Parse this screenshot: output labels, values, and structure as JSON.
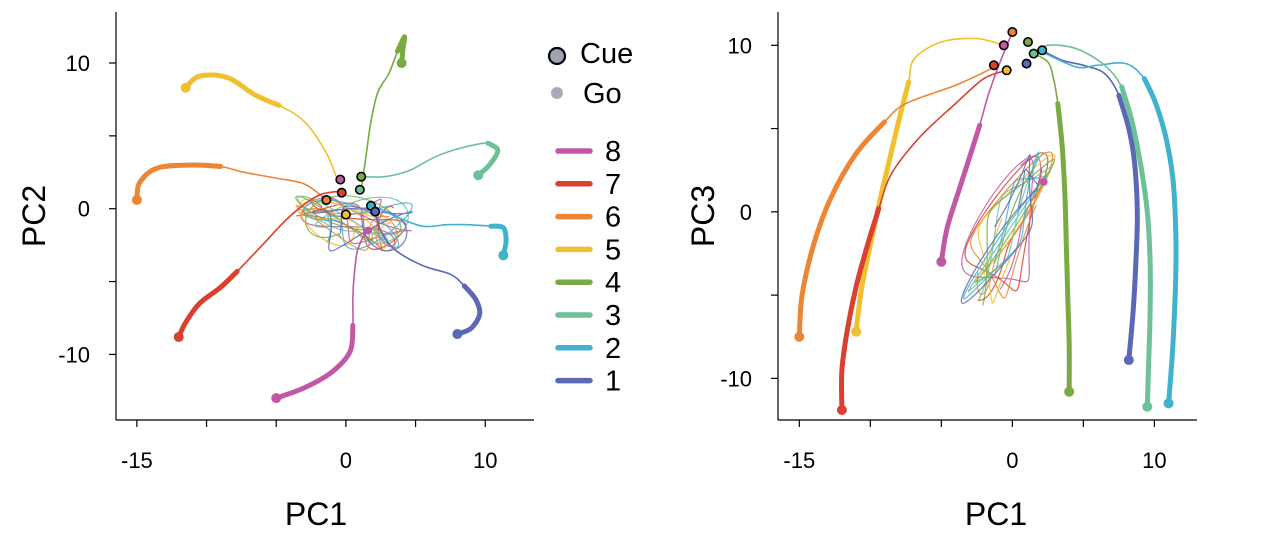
{
  "chart_data": [
    {
      "type": "line",
      "xlabel": "PC1",
      "ylabel": "PC2",
      "xlim": [
        -16.5,
        13.5
      ],
      "ylim": [
        -14.5,
        13.5
      ],
      "xticks": [
        -15,
        0,
        10
      ],
      "yticks": [
        -10,
        0,
        10
      ],
      "series": [
        {
          "name": "8",
          "color": "#c158a6",
          "points": [
            [
              -5,
              -13
            ],
            [
              -3,
              -12.3
            ],
            [
              -1,
              -11.2
            ],
            [
              0.3,
              -9.8
            ],
            [
              0.5,
              -8
            ],
            [
              0.5,
              -6
            ],
            [
              0.6,
              -4.5
            ],
            [
              0.8,
              -3
            ],
            [
              1.2,
              -2
            ],
            [
              1.6,
              -1.5
            ]
          ],
          "thick_count": 5
        },
        {
          "name": "7",
          "color": "#d9402f",
          "points": [
            [
              -12,
              -8.8
            ],
            [
              -11.5,
              -7.8
            ],
            [
              -10.5,
              -6.5
            ],
            [
              -9,
              -5.4
            ],
            [
              -7.8,
              -4.3
            ],
            [
              -6,
              -2.5
            ],
            [
              -4,
              -0.5
            ],
            [
              -2,
              0.9
            ],
            [
              -0.4,
              1.2
            ]
          ],
          "thick_count": 5
        },
        {
          "name": "6",
          "color": "#ec8534",
          "points": [
            [
              -15,
              0.6
            ],
            [
              -14.8,
              1.8
            ],
            [
              -13.5,
              2.8
            ],
            [
              -11,
              3
            ],
            [
              -9,
              2.9
            ],
            [
              -7.3,
              2.5
            ],
            [
              -5,
              2.1
            ],
            [
              -3,
              1.7
            ],
            [
              -1.5,
              0.7
            ]
          ],
          "thick_count": 5
        },
        {
          "name": "5",
          "color": "#f1c02d",
          "points": [
            [
              -11.5,
              8.3
            ],
            [
              -10.5,
              9.1
            ],
            [
              -8.5,
              9
            ],
            [
              -6.5,
              7.8
            ],
            [
              -4.8,
              7.1
            ],
            [
              -3,
              6
            ],
            [
              -1.5,
              4
            ],
            [
              -0.6,
              2
            ]
          ],
          "thick_count": 5
        },
        {
          "name": "4",
          "color": "#7aaa42",
          "points": [
            [
              4,
              10
            ],
            [
              4.1,
              11
            ],
            [
              4.2,
              11.8
            ],
            [
              3.7,
              10.8
            ],
            [
              3.1,
              9.3
            ],
            [
              2.3,
              8
            ],
            [
              1.8,
              6
            ],
            [
              1.5,
              4
            ],
            [
              1.1,
              1.3
            ]
          ],
          "thick_count": 4
        },
        {
          "name": "3",
          "color": "#6cc196",
          "points": [
            [
              9.5,
              2.3
            ],
            [
              10.3,
              3
            ],
            [
              10.9,
              4
            ],
            [
              10.2,
              4.5
            ],
            [
              8.4,
              4.2
            ],
            [
              6.5,
              3.6
            ],
            [
              4.5,
              2.6
            ],
            [
              2.8,
              2.2
            ],
            [
              1.1,
              2.2
            ]
          ],
          "thick_count": 4
        },
        {
          "name": "2",
          "color": "#40b2ce",
          "points": [
            [
              11.3,
              -3.2
            ],
            [
              11.5,
              -2.2
            ],
            [
              11.3,
              -1.3
            ],
            [
              10.4,
              -1.2
            ],
            [
              8.7,
              -1.1
            ],
            [
              7.2,
              -1.1
            ],
            [
              5.5,
              -1.2
            ],
            [
              3.5,
              -0.5
            ],
            [
              2,
              0.2
            ]
          ],
          "thick_count": 4
        },
        {
          "name": "1",
          "color": "#5a69b5",
          "points": [
            [
              8,
              -8.6
            ],
            [
              9,
              -8.2
            ],
            [
              9.6,
              -7.2
            ],
            [
              9.3,
              -6.2
            ],
            [
              8.5,
              -5.3
            ],
            [
              7.5,
              -4.5
            ],
            [
              5.5,
              -3.9
            ],
            [
              3.5,
              -2.8
            ],
            [
              2.5,
              -1.5
            ],
            [
              2.1,
              -0.2
            ]
          ],
          "thick_count": 5
        }
      ],
      "cue_points": [
        [
          -0.4,
          2
        ],
        [
          -0.3,
          1.1
        ],
        [
          -1.4,
          0.6
        ],
        [
          0,
          -0.4
        ],
        [
          1.1,
          2.2
        ],
        [
          1,
          1.3
        ],
        [
          1.8,
          0.2
        ],
        [
          2.1,
          -0.2
        ]
      ],
      "go_points": [
        [
          -11.5,
          8.3
        ],
        [
          4,
          10
        ],
        [
          9.5,
          2.3
        ],
        [
          -15,
          0.6
        ],
        [
          11.3,
          -3.2
        ],
        [
          8,
          -8.6
        ],
        [
          -12,
          -8.8
        ],
        [
          -5,
          -13
        ],
        [
          1.6,
          -1.5
        ]
      ]
    },
    {
      "type": "line",
      "xlabel": "PC1",
      "ylabel": "PC3",
      "xlim": [
        -16.5,
        13
      ],
      "ylim": [
        -12.5,
        12
      ],
      "xticks": [
        -15,
        0,
        10
      ],
      "yticks": [
        -10,
        0,
        10
      ],
      "series": [
        {
          "name": "8",
          "color": "#c158a6",
          "points": [
            [
              -5,
              -3
            ],
            [
              -4.6,
              -1
            ],
            [
              -3.8,
              1.2
            ],
            [
              -3,
              3.3
            ],
            [
              -2.3,
              5.2
            ],
            [
              -1.7,
              7
            ],
            [
              -1,
              8.7
            ],
            [
              0,
              10.8
            ]
          ],
          "thick_count": 5
        },
        {
          "name": "7",
          "color": "#d9402f",
          "points": [
            [
              -12,
              -11.9
            ],
            [
              -12,
              -9.5
            ],
            [
              -11.6,
              -7
            ],
            [
              -11,
              -4.5
            ],
            [
              -10.2,
              -2
            ],
            [
              -9.4,
              0.2
            ],
            [
              -8.5,
              2.3
            ],
            [
              -6.5,
              4.5
            ],
            [
              -4,
              6.5
            ],
            [
              -2,
              8
            ],
            [
              -0.4,
              8.5
            ]
          ],
          "thick_count": 6
        },
        {
          "name": "6",
          "color": "#ec8534",
          "points": [
            [
              -15,
              -7.5
            ],
            [
              -14.8,
              -5
            ],
            [
              -14,
              -2
            ],
            [
              -12.8,
              0.8
            ],
            [
              -11,
              3.5
            ],
            [
              -9,
              5.4
            ],
            [
              -7.5,
              6.5
            ],
            [
              -4,
              7.6
            ],
            [
              -1.5,
              8.6
            ],
            [
              -1.3,
              8.8
            ]
          ],
          "thick_count": 6
        },
        {
          "name": "5",
          "color": "#f1c02d",
          "points": [
            [
              -11,
              -7.2
            ],
            [
              -10.6,
              -4.5
            ],
            [
              -10,
              -2
            ],
            [
              -9.3,
              0.8
            ],
            [
              -8.6,
              3.3
            ],
            [
              -7.9,
              5.8
            ],
            [
              -7.3,
              7.8
            ],
            [
              -6.9,
              9.2
            ],
            [
              -5,
              10.2
            ],
            [
              -2.5,
              10.4
            ],
            [
              -0.6,
              10
            ]
          ],
          "thick_count": 7
        },
        {
          "name": "4",
          "color": "#7aaa42",
          "points": [
            [
              4,
              -10.8
            ],
            [
              4,
              -8
            ],
            [
              3.9,
              -5
            ],
            [
              3.8,
              -2
            ],
            [
              3.7,
              1
            ],
            [
              3.5,
              4
            ],
            [
              3.2,
              6.5
            ],
            [
              2.9,
              8
            ],
            [
              2.5,
              9
            ],
            [
              1.5,
              9.5
            ]
          ],
          "thick_count": 7
        },
        {
          "name": "3",
          "color": "#6cc196",
          "points": [
            [
              9.5,
              -11.7
            ],
            [
              9.6,
              -9
            ],
            [
              9.7,
              -6
            ],
            [
              9.7,
              -3
            ],
            [
              9.5,
              0
            ],
            [
              9,
              3
            ],
            [
              8.4,
              5.5
            ],
            [
              7.7,
              7.5
            ],
            [
              6.5,
              8.8
            ],
            [
              4.5,
              9.8
            ],
            [
              2.5,
              10
            ],
            [
              1.5,
              9.5
            ]
          ],
          "thick_count": 8
        },
        {
          "name": "2",
          "color": "#40b2ce",
          "points": [
            [
              11,
              -11.5
            ],
            [
              11.3,
              -8
            ],
            [
              11.5,
              -4
            ],
            [
              11.5,
              -1
            ],
            [
              11.3,
              2
            ],
            [
              10.8,
              4.5
            ],
            [
              10.1,
              6.5
            ],
            [
              9.3,
              8
            ],
            [
              8,
              8.9
            ],
            [
              6,
              8.8
            ],
            [
              4.5,
              8.7
            ],
            [
              2.1,
              9.6
            ]
          ],
          "thick_count": 8
        },
        {
          "name": "1",
          "color": "#5a69b5",
          "points": [
            [
              8.2,
              -8.9
            ],
            [
              8.5,
              -6
            ],
            [
              8.7,
              -3
            ],
            [
              8.8,
              0
            ],
            [
              8.6,
              3
            ],
            [
              8.2,
              5
            ],
            [
              7.5,
              7
            ],
            [
              6.5,
              8.3
            ],
            [
              5,
              8.8
            ],
            [
              3.5,
              9.1
            ],
            [
              2.1,
              9.7
            ]
          ],
          "thick_count": 7
        }
      ],
      "cue_points": [
        [
          -0.6,
          10
        ],
        [
          -1.3,
          8.8
        ],
        [
          0,
          10.8
        ],
        [
          -0.4,
          8.5
        ],
        [
          1.1,
          10.2
        ],
        [
          1.5,
          9.5
        ],
        [
          2.1,
          9.7
        ],
        [
          1,
          8.9
        ]
      ],
      "go_points": [
        [
          -5,
          -3
        ],
        [
          -12,
          -11.9
        ],
        [
          -15,
          -7.5
        ],
        [
          -11,
          -7.2
        ],
        [
          4,
          -10.8
        ],
        [
          9.5,
          -11.7
        ],
        [
          11,
          -11.5
        ],
        [
          8.2,
          -8.9
        ],
        [
          2.2,
          1.8
        ]
      ]
    }
  ],
  "legend": {
    "cue_label": "Cue",
    "go_label": "Go",
    "items": [
      {
        "label": "8",
        "color": "#c158a6"
      },
      {
        "label": "7",
        "color": "#d9402f"
      },
      {
        "label": "6",
        "color": "#ec8534"
      },
      {
        "label": "5",
        "color": "#f1c02d"
      },
      {
        "label": "4",
        "color": "#7aaa42"
      },
      {
        "label": "3",
        "color": "#6cc196"
      },
      {
        "label": "2",
        "color": "#40b2ce"
      },
      {
        "label": "1",
        "color": "#5a69b5"
      }
    ]
  }
}
